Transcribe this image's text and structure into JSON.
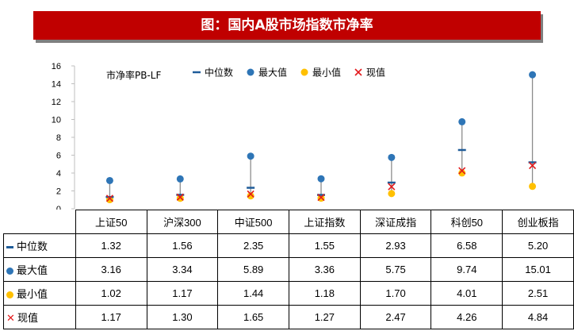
{
  "title": "图：国内A股市场指数市净率",
  "chart_data": {
    "type": "scatter",
    "inner_label": "市净率PB-LF",
    "categories": [
      "上证50",
      "沪深300",
      "中证500",
      "上证指数",
      "深证成指",
      "科创50",
      "创业板指"
    ],
    "ylim": [
      0,
      16
    ],
    "yticks": [
      0,
      2,
      4,
      6,
      8,
      10,
      12,
      14,
      16
    ],
    "grid": false,
    "legend_position": "top",
    "series": [
      {
        "key": "median",
        "name": "中位数",
        "marker": "dash",
        "color": "#1f5c99",
        "values": [
          1.32,
          1.56,
          2.35,
          1.55,
          2.93,
          6.58,
          5.2
        ]
      },
      {
        "key": "max",
        "name": "最大值",
        "marker": "circle",
        "color": "#2e75b6",
        "values": [
          3.16,
          3.34,
          5.89,
          3.36,
          5.75,
          9.74,
          15.01
        ]
      },
      {
        "key": "min",
        "name": "最小值",
        "marker": "circle",
        "color": "#ffc000",
        "values": [
          1.02,
          1.17,
          1.44,
          1.18,
          1.7,
          4.01,
          2.51
        ]
      },
      {
        "key": "current",
        "name": "现值",
        "marker": "x",
        "color": "#e31a1c",
        "values": [
          1.17,
          1.3,
          1.65,
          1.27,
          2.47,
          4.26,
          4.84
        ]
      }
    ],
    "table_values": [
      [
        "1.32",
        "1.56",
        "2.35",
        "1.55",
        "2.93",
        "6.58",
        "5.20"
      ],
      [
        "3.16",
        "3.34",
        "5.89",
        "3.36",
        "5.75",
        "9.74",
        "15.01"
      ],
      [
        "1.02",
        "1.17",
        "1.44",
        "1.18",
        "1.70",
        "4.01",
        "2.51"
      ],
      [
        "1.17",
        "1.30",
        "1.65",
        "1.27",
        "2.47",
        "4.26",
        "4.84"
      ]
    ]
  }
}
